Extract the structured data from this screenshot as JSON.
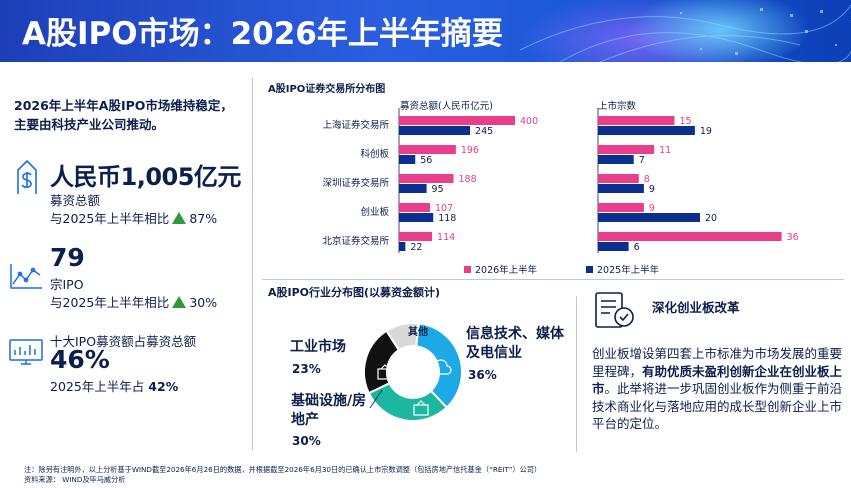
{
  "header": {
    "title": "A股IPO市场：2026年上半年摘要"
  },
  "summary": {
    "intro": "2026年上半年A股IPO市场维持稳定，主要由科技产业公司推动。",
    "kpi1": {
      "value": "人民币1,005亿元",
      "label": "募资总额",
      "compare_prefix": "与2025年上半年相比",
      "change": "87%",
      "trend": "up",
      "icon": "currency-icon"
    },
    "kpi2": {
      "value": "79",
      "label": "宗IPO",
      "compare_prefix": "与2025年上半年相比",
      "change": "30%",
      "trend": "up",
      "icon": "line-chart-icon"
    },
    "kpi3": {
      "label": "十大IPO募资额占募资总额",
      "value": "46%",
      "compare_prefix": "2025年上半年占 ",
      "compare_value": "42%",
      "icon": "monitor-chart-icon"
    },
    "up_color": "#2e9a3b"
  },
  "colors": {
    "h1_2026": "#e83e8c",
    "h1_2025": "#0a2f8f",
    "pie_tech": "#1ca9e6",
    "pie_infra": "#1bb7a0",
    "pie_industrial": "#111111",
    "pie_other": "#d9d9d9"
  },
  "chart_data": [
    {
      "type": "bar",
      "orientation": "horizontal",
      "title": "A股IPO证券交易所分布图",
      "categories": [
        "上海证券交易所",
        "科创板",
        "深圳证券交易所",
        "创业板",
        "北京证券交易所"
      ],
      "panels": [
        {
          "subtitle": "募资总额(人民币亿元)",
          "series": [
            {
              "name": "2026年上半年",
              "values": [
                400,
                196,
                188,
                107,
                114
              ]
            },
            {
              "name": "2025年上半年",
              "values": [
                245,
                56,
                95,
                118,
                22
              ]
            }
          ]
        },
        {
          "subtitle": "上市宗数",
          "series": [
            {
              "name": "2026年上半年",
              "values": [
                15,
                11,
                8,
                9,
                36
              ]
            },
            {
              "name": "2025年上半年",
              "values": [
                19,
                7,
                9,
                20,
                6
              ]
            }
          ]
        }
      ],
      "legend": [
        "2026年上半年",
        "2025年上半年"
      ],
      "legend_position": "bottom"
    },
    {
      "type": "pie",
      "title": "A股IPO行业分布图(以募资金额计)",
      "slices": [
        {
          "label": "信息技术、媒体及电信业",
          "value": 36,
          "display": "36%"
        },
        {
          "label": "基础设施/房地产",
          "value": 30,
          "display": "30%"
        },
        {
          "label": "工业市场",
          "value": 23,
          "display": "23%"
        },
        {
          "label": "其他",
          "value": 11,
          "display": ""
        }
      ]
    }
  ],
  "reform": {
    "icon": "checklist-icon",
    "title": "深化创业板改革",
    "text_a": "创业板增设第四套上市标准为市场发展的重要里程碑，",
    "text_b": "有助优质未盈利创新企业在创业板上市",
    "text_c": "。此举将进一步巩固创业板作为侧重于前沿技术商业化与落地应用的成长型创新企业上市平台的定位。"
  },
  "footer": {
    "note": "注：除另有注明外，以上分析基于WIND截至2026年6月26日的数据，并根据截至2026年6月30日的已确认上市宗数调整（包括房地产信托基金（“REIT”）公司）",
    "source": "资料来源： WIND及毕马威分析"
  }
}
